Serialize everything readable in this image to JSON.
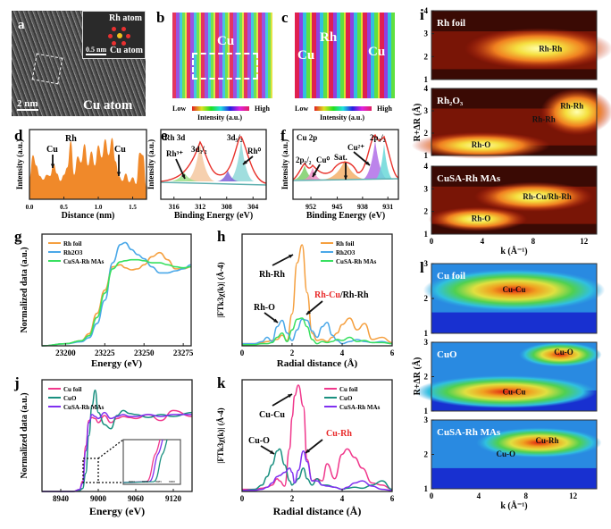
{
  "figure": {
    "panels": {
      "a": {
        "label": "a",
        "inset_labels": [
          "Rh atom",
          "Cu atom"
        ],
        "inset_scale": "0.5 nm",
        "scale": "2 nm",
        "annotation": "Cu atom"
      },
      "b": {
        "label": "b",
        "annotation": "Cu",
        "colorbar": {
          "low": "Low",
          "high": "High",
          "title": "Intensity (a.u.)"
        }
      },
      "c": {
        "label": "c",
        "annotations": [
          "Rh",
          "Cu",
          "Cu"
        ],
        "colorbar": {
          "low": "Low",
          "high": "High",
          "title": "Intensity (a.u.)"
        }
      },
      "d": {
        "label": "d"
      },
      "e": {
        "label": "e"
      },
      "f": {
        "label": "f"
      },
      "g": {
        "label": "g"
      },
      "h": {
        "label": "h"
      },
      "i": {
        "label": "i"
      },
      "j": {
        "label": "j"
      },
      "k": {
        "label": "k"
      },
      "l": {
        "label": "l"
      }
    }
  },
  "chart_data": [
    {
      "id": "d",
      "type": "area",
      "title": "",
      "xlabel": "Distance (nm)",
      "ylabel": "Intensity (a.u.)",
      "xlim": [
        0,
        1.7
      ],
      "xticks": [
        "0.0",
        "0.5",
        "1.0",
        "1.5"
      ],
      "annotations": [
        "Cu",
        "Rh",
        "Cu"
      ],
      "x": [
        0,
        0.05,
        0.1,
        0.15,
        0.2,
        0.25,
        0.3,
        0.35,
        0.4,
        0.45,
        0.5,
        0.55,
        0.6,
        0.65,
        0.7,
        0.75,
        0.8,
        0.85,
        0.9,
        0.95,
        1.0,
        1.05,
        1.1,
        1.15,
        1.2,
        1.25,
        1.3,
        1.35,
        1.4,
        1.45,
        1.5,
        1.55,
        1.6,
        1.65,
        1.7
      ],
      "values": [
        0.35,
        0.72,
        0.55,
        0.38,
        0.32,
        0.4,
        0.38,
        0.58,
        0.42,
        0.3,
        0.4,
        0.52,
        0.95,
        0.4,
        0.7,
        0.6,
        0.9,
        0.55,
        0.78,
        0.55,
        0.88,
        0.68,
        0.98,
        0.72,
        1.0,
        0.62,
        0.38,
        0.3,
        0.42,
        0.28,
        0.36,
        0.25,
        0.76,
        0.72,
        0.2
      ],
      "color": "#f0892a"
    },
    {
      "id": "e",
      "type": "line",
      "title": "Rh 3d",
      "xlabel": "Binding Energy (eV)",
      "ylabel": "Intensity (a.u.)",
      "xlim": [
        318,
        302
      ],
      "xticks": [
        "316",
        "312",
        "308",
        "304"
      ],
      "annotations": [
        "Rh3+",
        "3d3/2",
        "3d5/2",
        "Rh0"
      ],
      "series": [
        {
          "name": "fit-envelope",
          "color": "#e8322b"
        },
        {
          "name": "Rh0 3d3/2",
          "color": "#f5c8a0"
        },
        {
          "name": "Rh0 3d5/2",
          "color": "#8fd8d8"
        },
        {
          "name": "Rh3+",
          "color": "#9de08a"
        },
        {
          "name": "Rh3+ 3d5/2",
          "color": "#8060d8"
        }
      ]
    },
    {
      "id": "f",
      "type": "line",
      "title": "Cu 2p",
      "xlabel": "Binding Energy (eV)",
      "ylabel": "Intensity (a.u.)",
      "xlim": [
        957,
        928
      ],
      "xticks": [
        "952",
        "945",
        "938",
        "931"
      ],
      "annotations": [
        "2p1/2",
        "Cu0",
        "Sat.",
        "Cu2+",
        "2p3/2"
      ],
      "series": [
        {
          "name": "fit-envelope",
          "color": "#e8322b"
        },
        {
          "name": "Cu2+ 2p1/2",
          "color": "#7ccf6a"
        },
        {
          "name": "Cu0 2p1/2",
          "color": "#f08ec8"
        },
        {
          "name": "Satellite",
          "color": "#f5b06a"
        },
        {
          "name": "Cu2+ 2p3/2",
          "color": "#b06ee8"
        },
        {
          "name": "Cu0 2p3/2",
          "color": "#6ad8d8"
        }
      ]
    },
    {
      "id": "g",
      "type": "line",
      "title": "",
      "xlabel": "Energy (eV)",
      "ylabel": "Normalized data (a.u.)",
      "xlim": [
        23185,
        23280
      ],
      "xticks": [
        "23200",
        "23225",
        "23250",
        "23275"
      ],
      "legend": "top-left",
      "x": [
        23185,
        23200,
        23210,
        23215,
        23220,
        23225,
        23230,
        23235,
        23238,
        23242,
        23246,
        23250,
        23255,
        23260,
        23265,
        23270,
        23275,
        23280
      ],
      "series": [
        {
          "name": "Rh foil",
          "color": "#f5a040",
          "values": [
            0.0,
            0.02,
            0.05,
            0.12,
            0.32,
            0.55,
            0.78,
            0.8,
            0.77,
            0.75,
            0.76,
            0.8,
            0.88,
            0.92,
            0.85,
            0.76,
            0.76,
            0.78
          ]
        },
        {
          "name": "Rh2O3",
          "color": "#4aa8e8",
          "values": [
            0.0,
            0.02,
            0.04,
            0.08,
            0.22,
            0.45,
            0.82,
            1.0,
            1.02,
            0.95,
            0.9,
            0.86,
            0.78,
            0.72,
            0.72,
            0.74,
            0.76,
            0.8
          ]
        },
        {
          "name": "CuSA-Rh MAs",
          "color": "#38e060",
          "values": [
            0.0,
            0.02,
            0.05,
            0.1,
            0.28,
            0.52,
            0.76,
            0.83,
            0.84,
            0.85,
            0.85,
            0.84,
            0.82,
            0.82,
            0.8,
            0.78,
            0.77,
            0.78
          ]
        }
      ]
    },
    {
      "id": "h",
      "type": "line",
      "title": "",
      "xlabel": "Radial distance (Å)",
      "ylabel": "|FTk3χ(k)| (Å-4)",
      "xlim": [
        0,
        6
      ],
      "xticks": [
        "0",
        "2",
        "4",
        "6"
      ],
      "legend": "top-right",
      "annotations": [
        "Rh-Rh",
        "Rh-O",
        "Rh-Cu/Rh-Rh"
      ],
      "x": [
        0,
        0.5,
        0.8,
        1.0,
        1.2,
        1.4,
        1.6,
        1.8,
        2.0,
        2.2,
        2.4,
        2.6,
        2.8,
        3.0,
        3.2,
        3.4,
        3.6,
        3.8,
        4.0,
        4.3,
        4.6,
        4.9,
        5.2,
        5.6,
        6.0
      ],
      "series": [
        {
          "name": "Rh foil",
          "color": "#f5a040",
          "values": [
            0.02,
            0.02,
            0.03,
            0.04,
            0.05,
            0.06,
            0.1,
            0.05,
            0.3,
            0.78,
            0.95,
            0.5,
            0.12,
            0.05,
            0.06,
            0.04,
            0.08,
            0.12,
            0.2,
            0.26,
            0.15,
            0.21,
            0.06,
            0.08,
            0.03
          ]
        },
        {
          "name": "Rh2O3",
          "color": "#4aa8e8",
          "values": [
            0.02,
            0.02,
            0.04,
            0.08,
            0.04,
            0.18,
            0.24,
            0.12,
            0.05,
            0.15,
            0.25,
            0.24,
            0.14,
            0.08,
            0.18,
            0.22,
            0.1,
            0.05,
            0.02,
            0.04,
            0.06,
            0.04,
            0.03,
            0.04,
            0.02
          ]
        },
        {
          "name": "CuSA-Rh MAs",
          "color": "#38e060",
          "values": [
            0.01,
            0.01,
            0.02,
            0.02,
            0.03,
            0.08,
            0.12,
            0.04,
            0.15,
            0.25,
            0.26,
            0.18,
            0.06,
            0.02,
            0.04,
            0.03,
            0.04,
            0.06,
            0.05,
            0.08,
            0.04,
            0.05,
            0.03,
            0.03,
            0.02
          ]
        }
      ]
    },
    {
      "id": "i",
      "type": "heatmap",
      "title": "",
      "xlabel": "k (Å-1)",
      "ylabel": "R+ΔR (Å)",
      "xlim": [
        0,
        13
      ],
      "ylim": [
        1,
        4
      ],
      "xticks": [
        "0",
        "4",
        "8",
        "12"
      ],
      "yticks": [
        "1",
        "2",
        "3",
        "4"
      ],
      "subpanels": [
        {
          "name": "Rh foil",
          "annotations": [
            "Rh-Rh"
          ]
        },
        {
          "name": "Rh2O3",
          "annotations": [
            "Rh-Rh",
            "Rh-Rh",
            "Rh-O"
          ]
        },
        {
          "name": "CuSA-Rh MAs",
          "annotations": [
            "Rh-Cu/Rh-Rh",
            "Rh-O"
          ]
        }
      ]
    },
    {
      "id": "j",
      "type": "line",
      "title": "",
      "xlabel": "Energy (eV)",
      "ylabel": "Normalized data (a.u.)",
      "xlim": [
        8910,
        9150
      ],
      "xticks": [
        "8940",
        "9000",
        "9060",
        "9120"
      ],
      "legend": "top-left",
      "inset_xticks": [
        "8955",
        "8970",
        "8985",
        "9000"
      ],
      "x": [
        8910,
        8960,
        8970,
        8975,
        8980,
        8985,
        8990,
        8995,
        9000,
        9010,
        9020,
        9030,
        9040,
        9050,
        9060,
        9080,
        9100,
        9120,
        9150
      ],
      "series": [
        {
          "name": "Cu foil",
          "color": "#f0388c",
          "values": [
            0.0,
            0.0,
            0.02,
            0.1,
            0.45,
            0.7,
            0.73,
            0.72,
            0.68,
            0.75,
            0.68,
            0.72,
            0.74,
            0.73,
            0.72,
            0.76,
            0.7,
            0.8,
            0.74
          ]
        },
        {
          "name": "CuO",
          "color": "#1a9080",
          "values": [
            0.0,
            0.0,
            0.01,
            0.03,
            0.18,
            0.55,
            0.85,
            1.0,
            0.78,
            0.66,
            0.62,
            0.75,
            0.8,
            0.77,
            0.76,
            0.73,
            0.76,
            0.74,
            0.78
          ]
        },
        {
          "name": "CuSA-Rh MAs",
          "color": "#8030f0",
          "values": [
            0.0,
            0.0,
            0.02,
            0.08,
            0.4,
            0.68,
            0.76,
            0.74,
            0.72,
            0.78,
            0.72,
            0.74,
            0.76,
            0.74,
            0.74,
            0.76,
            0.74,
            0.76,
            0.76
          ]
        }
      ]
    },
    {
      "id": "k",
      "type": "line",
      "title": "",
      "xlabel": "Radial distance (Å)",
      "ylabel": "|FTk3χ(k)| (Å-4)",
      "xlim": [
        0,
        6
      ],
      "xticks": [
        "0",
        "2",
        "4",
        "6"
      ],
      "legend": "top-right",
      "annotations": [
        "Cu-Cu",
        "Cu-O",
        "Cu-Rh"
      ],
      "x": [
        0,
        0.5,
        0.8,
        1.0,
        1.2,
        1.4,
        1.5,
        1.7,
        1.9,
        2.0,
        2.1,
        2.25,
        2.45,
        2.6,
        2.8,
        3.0,
        3.2,
        3.4,
        3.7,
        4.0,
        4.2,
        4.5,
        4.8,
        5.2,
        5.6,
        6.0
      ],
      "series": [
        {
          "name": "Cu foil",
          "color": "#f0388c",
          "values": [
            0.02,
            0.02,
            0.03,
            0.04,
            0.06,
            0.12,
            0.1,
            0.05,
            0.4,
            0.7,
            0.9,
            1.0,
            0.8,
            0.3,
            0.1,
            0.12,
            0.1,
            0.26,
            0.12,
            0.35,
            0.4,
            0.32,
            0.22,
            0.08,
            0.06,
            0.02
          ]
        },
        {
          "name": "CuO",
          "color": "#1a9080",
          "values": [
            0.01,
            0.02,
            0.06,
            0.14,
            0.25,
            0.38,
            0.4,
            0.25,
            0.1,
            0.06,
            0.08,
            0.12,
            0.22,
            0.12,
            0.06,
            0.12,
            0.06,
            0.06,
            0.04,
            0.02,
            0.03,
            0.04,
            0.03,
            0.06,
            0.1,
            0.02
          ]
        },
        {
          "name": "CuSA-Rh MAs",
          "color": "#8030f0",
          "values": [
            0.01,
            0.01,
            0.02,
            0.04,
            0.08,
            0.14,
            0.15,
            0.18,
            0.22,
            0.18,
            0.08,
            0.2,
            0.38,
            0.28,
            0.1,
            0.1,
            0.06,
            0.05,
            0.04,
            0.02,
            0.04,
            0.08,
            0.1,
            0.05,
            0.02,
            0.01
          ]
        }
      ]
    },
    {
      "id": "l",
      "type": "heatmap",
      "title": "",
      "xlabel": "k (Å-1)",
      "ylabel": "R+ΔR (Å)",
      "xlim": [
        0,
        14
      ],
      "ylim": [
        1,
        3
      ],
      "xticks": [
        "0",
        "4",
        "8",
        "12"
      ],
      "yticks": [
        "1",
        "2",
        "3"
      ],
      "subpanels": [
        {
          "name": "Cu foil",
          "annotations": [
            "Cu-Cu"
          ]
        },
        {
          "name": "CuO",
          "annotations": [
            "Cu-Cu",
            "Cu-O"
          ]
        },
        {
          "name": "CuSA-Rh MAs",
          "annotations": [
            "Cu-Rh",
            "Cu-O"
          ]
        }
      ]
    }
  ],
  "labels": {
    "d_cu1": "Cu",
    "d_rh": "Rh",
    "d_cu2": "Cu",
    "e_title": "Rh 3d",
    "e_rh3": "Rh³⁺",
    "e_32": "3d₃/₂",
    "e_52": "3d₅/₂",
    "e_rh0": "Rh⁰",
    "f_title": "Cu 2p",
    "f_212": "2p₁/₂",
    "f_cu0": "Cu⁰",
    "f_sat": "Sat.",
    "f_cu2": "Cu²⁺",
    "f_232": "2p₃/₂",
    "h_rhrh": "Rh-Rh",
    "h_rho": "Rh-O",
    "h_rhcu_red": "Rh-Cu",
    "h_rhcu_black": "/Rh-Rh",
    "k_cucu": "Cu-Cu",
    "k_cuo": "Cu-O",
    "k_curh": "Cu-Rh",
    "i1_title": "Rh foil",
    "i1_a1": "Rh-Rh",
    "i2_title": "Rh₂O₃",
    "i2_a1": "Rh-Rh",
    "i2_a2": "Rh-Rh",
    "i2_a3": "Rh-O",
    "i3_title": "CuSA-Rh MAs",
    "i3_a1": "Rh-Cu/Rh-Rh",
    "i3_a2": "Rh-O",
    "l1_title": "Cu foil",
    "l1_a1": "Cu-Cu",
    "l2_title": "CuO",
    "l2_a1": "Cu-Cu",
    "l2_a2": "Cu-O",
    "l3_title": "CuSA-Rh MAs",
    "l3_a1": "Cu-Rh",
    "l3_a2": "Cu-O",
    "ylab_d": "Intensity (a.u.)",
    "ylab_e": "Intensity (a.u.)",
    "ylab_f": "Intensity (a.u.)",
    "ylab_g": "Normalized data (a.u.)",
    "ylab_h": "|FTk3χ(k)| (Å-4)",
    "ylab_j": "Normalized data (a.u.)",
    "ylab_k": "|FTk3χ(k)| (Å-4)",
    "ylab_i": "R+ΔR (Å)",
    "ylab_l": "R+ΔR (Å)",
    "xlab_d": "Distance (nm)",
    "xlab_e": "Binding Energy (eV)",
    "xlab_f": "Binding Energy (eV)",
    "xlab_g": "Energy (eV)",
    "xlab_h": "Radial distance (Å)",
    "xlab_j": "Energy (eV)",
    "xlab_k": "Radial distance (Å)",
    "xlab_i": "k (Å⁻¹)",
    "xlab_l": "k (Å⁻¹)"
  }
}
